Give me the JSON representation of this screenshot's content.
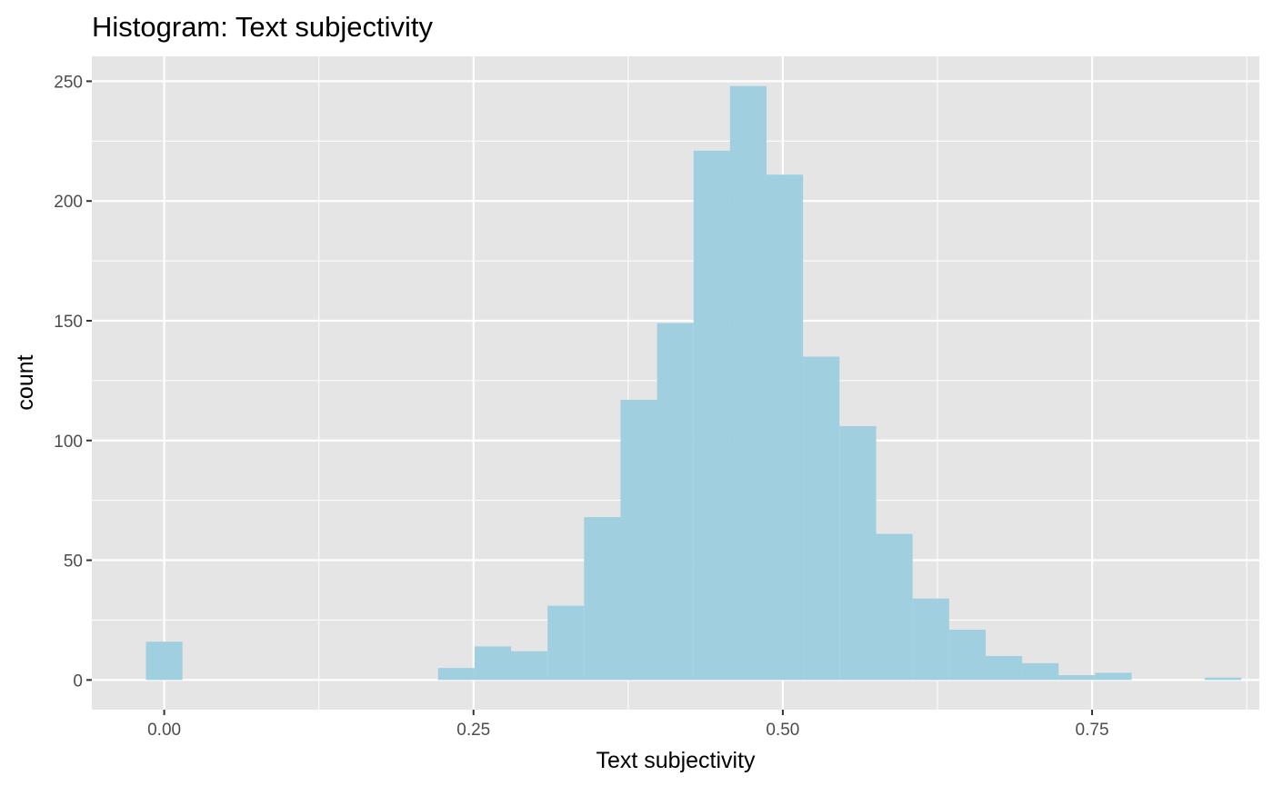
{
  "chart_data": {
    "type": "bar",
    "title": "Histogram: Text subjectivity",
    "xlabel": "Text subjectivity",
    "ylabel": "count",
    "bin_width": 0.0295,
    "bins": [
      {
        "x": 0.0,
        "count": 16
      },
      {
        "x": 0.2361,
        "count": 5
      },
      {
        "x": 0.2656,
        "count": 14
      },
      {
        "x": 0.2951,
        "count": 12
      },
      {
        "x": 0.3246,
        "count": 31
      },
      {
        "x": 0.3541,
        "count": 68
      },
      {
        "x": 0.3836,
        "count": 117
      },
      {
        "x": 0.4131,
        "count": 149
      },
      {
        "x": 0.4426,
        "count": 221
      },
      {
        "x": 0.4721,
        "count": 248
      },
      {
        "x": 0.5016,
        "count": 211
      },
      {
        "x": 0.5311,
        "count": 135
      },
      {
        "x": 0.5607,
        "count": 106
      },
      {
        "x": 0.5902,
        "count": 61
      },
      {
        "x": 0.6197,
        "count": 34
      },
      {
        "x": 0.6492,
        "count": 21
      },
      {
        "x": 0.6787,
        "count": 10
      },
      {
        "x": 0.7082,
        "count": 7
      },
      {
        "x": 0.7377,
        "count": 2
      },
      {
        "x": 0.7672,
        "count": 3
      },
      {
        "x": 0.8557,
        "count": 1
      }
    ],
    "xlim": [
      -0.0585,
      0.8852
    ],
    "ylim": [
      -12.4,
      260.4
    ],
    "x_ticks": [
      0,
      0.25,
      0.5,
      0.75
    ],
    "x_tick_labels": [
      "0.00",
      "0.25",
      "0.50",
      "0.75"
    ],
    "y_ticks": [
      0,
      50,
      100,
      150,
      200,
      250
    ],
    "y_tick_labels": [
      "0",
      "50",
      "100",
      "150",
      "200",
      "250"
    ],
    "grid": true,
    "colors": {
      "bar": "#a0cfe0",
      "panel": "#e5e5e5",
      "grid": "#ffffff"
    }
  }
}
